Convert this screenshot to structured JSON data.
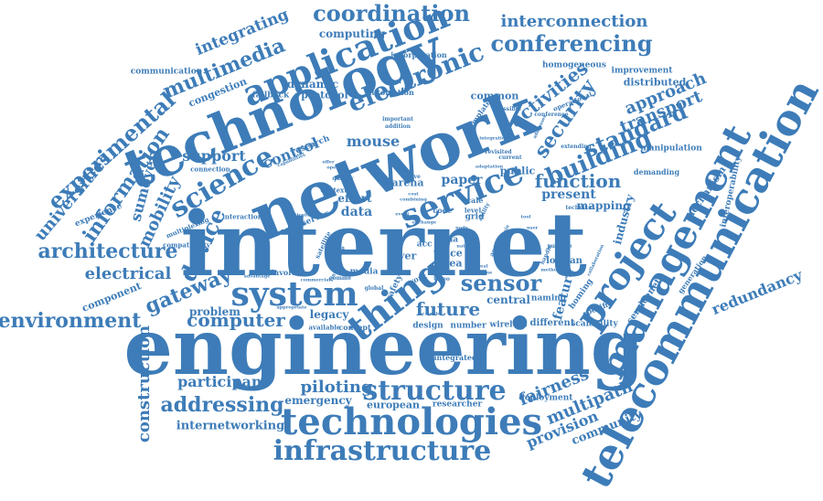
{
  "accent_color": "#3d7cb8",
  "words": {
    "internet": "internet",
    "engineering": "engineering",
    "network": "network",
    "technology": "technology",
    "telecommunication": "telecommunication",
    "management": "management",
    "project": "project",
    "technologies": "technologies",
    "infrastructure": "infrastructure",
    "service": "service",
    "system": "system",
    "thing": "thing",
    "application": "application",
    "electronic": "electronic",
    "coordination": "coordination",
    "conferencing": "conferencing",
    "interconnection": "interconnection",
    "multimedia": "multimedia",
    "integrating": "integrating",
    "computing": "computing",
    "experimental": "experimental",
    "universities": "universities",
    "information": "information",
    "science": "science",
    "architecture": "architecture",
    "environment": "environment",
    "electrical": "electrical",
    "gateway": "gateway",
    "device": "device",
    "building": "building",
    "standard": "standard",
    "security": "security",
    "activities": "activities",
    "approach": "approach",
    "transport": "transport",
    "structure": "structure",
    "addressing": "addressing",
    "piloting": "piloting",
    "computer": "computer",
    "sensor": "sensor",
    "future": "future",
    "function": "function",
    "redundancy": "redundancy",
    "fairness": "fairness",
    "multipath": "multipath",
    "provision": "provision",
    "community": "community",
    "construction": "construction",
    "participant": "participant",
    "internetworking": "internetworking",
    "emergency": "emergency",
    "european": "european",
    "researcher": "researcher",
    "deployment": "deployment",
    "mobility": "mobility",
    "sumover": "sumover",
    "support": "support",
    "control": "control",
    "mouse": "mouse",
    "paper": "paper",
    "data": "data",
    "effort": "effort",
    "present": "present",
    "mapping": "mapping",
    "industry": "industry",
    "mechanism": "mechanism",
    "interoperability": "interoperability",
    "generation": "generation",
    "servicenet": "servicenet",
    "homing": "homing",
    "feature": "feature",
    "central": "central",
    "naming": "naming",
    "lowpan": "lowpan",
    "layer": "layer",
    "voice": "voice",
    "area": "area",
    "legacy": "legacy",
    "problem": "problem",
    "component": "component",
    "communication": "communication",
    "congestion": "congestion",
    "dynamic": "dynamic",
    "protocol": "protocol",
    "fallback": "fallback",
    "automation": "automation",
    "common": "common",
    "incorporation": "incorporation",
    "homogeneous": "homogeneous",
    "improvement": "improvement",
    "distributed": "distributed",
    "manipulation": "manipulation",
    "demanding": "demanding",
    "public": "public",
    "arena": "arena",
    "scalability": "scalability",
    "different": "different",
    "wireless": "wireless",
    "number": "number",
    "design": "design",
    "concept": "concept",
    "available": "available",
    "media": "media",
    "involved": "involved",
    "interaction": "interaction",
    "connection": "connection",
    "experience": "experience",
    "multiplexing": "multiplexing",
    "compatibility": "compatibility",
    "research": "research",
    "context": "context",
    "server": "server",
    "integrated": "integrated",
    "specific": "specific",
    "safety": "safety",
    "work": "work",
    "scale": "scale",
    "grid": "grid",
    "level": "level",
    "code": "code",
    "asia": "asia",
    "acc": "acc",
    "addition": "addition",
    "important": "important",
    "template": "template",
    "conference": "conference",
    "operational": "operational",
    "extending": "extending",
    "technical": "technical",
    "purpose": "purpose",
    "possible": "possible",
    "current": "current",
    "revisited": "revisited",
    "advantage": "advantage",
    "appropriate": "appropriate",
    "commercial": "commercial",
    "particular": "particular",
    "aim": "aim",
    "native": "native",
    "asset": "asset",
    "satellite": "satellite",
    "enable": "enable",
    "capabilities": "capabilities",
    "global": "global",
    "scalable": "scalable",
    "lab": "lab",
    "video": "video",
    "issue": "issue",
    "quality": "quality",
    "handle": "handle",
    "method": "method",
    "offer": "offer",
    "comme": "comme",
    "collaboration": "collaboration",
    "combining": "combining",
    "adaptation": "adaptation",
    "addresses": "addresses",
    "integration": "integration",
    "operate": "operate",
    "ability": "ability",
    "active": "active",
    "cost": "cost",
    "event": "event",
    "building2": "building",
    "exchange": "exchange",
    "real": "real",
    "time": "time",
    "domain": "domain",
    "node": "node",
    "tool": "tool",
    "user": "user"
  }
}
